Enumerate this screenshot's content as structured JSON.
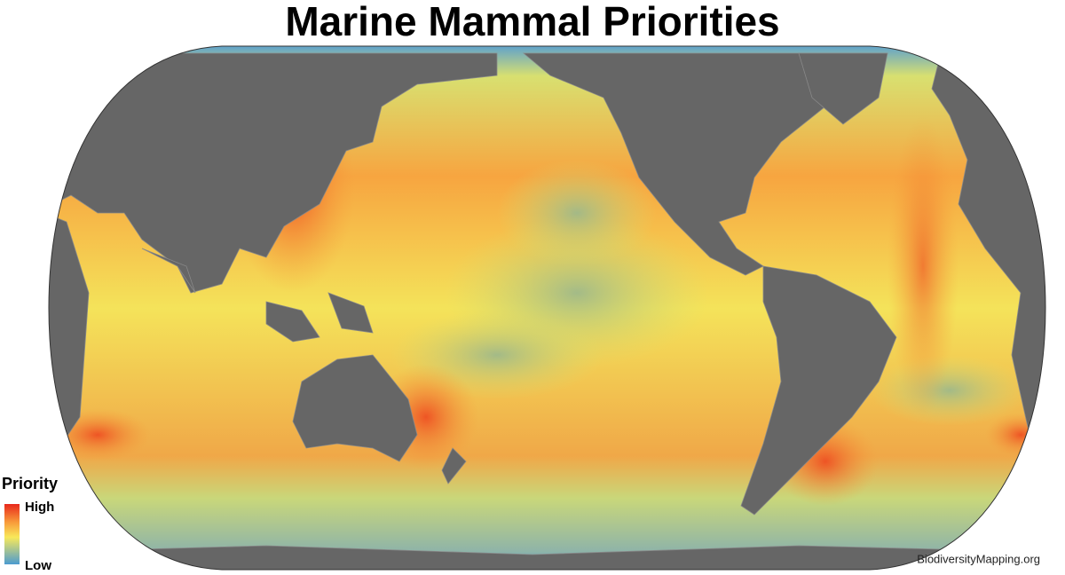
{
  "title": "Marine Mammal Priorities",
  "legend": {
    "title": "Priority",
    "high": "High",
    "low": "Low"
  },
  "credit": "BiodiversityMapping.org"
}
